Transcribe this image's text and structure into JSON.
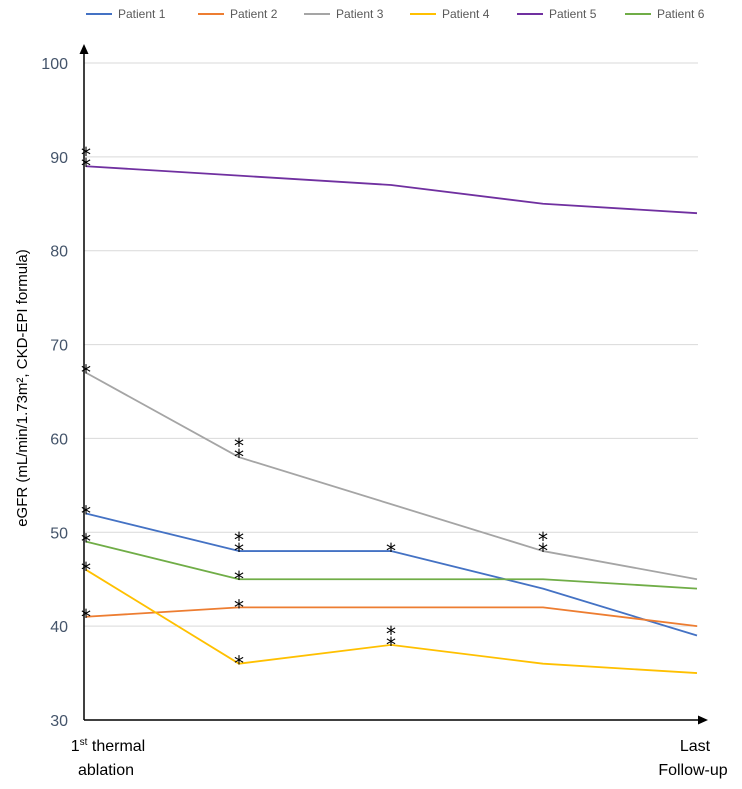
{
  "chart_data": {
    "type": "line",
    "ylabel": "eGFR (mL/min/1.73m², CKD-EPI formula)",
    "ylim": [
      30,
      100
    ],
    "yticks": [
      "30",
      "40",
      "50",
      "60",
      "70",
      "80",
      "90",
      "100"
    ],
    "ytick_values": [
      30,
      40,
      50,
      60,
      70,
      80,
      90,
      100
    ],
    "grid": true,
    "legend_position": "top",
    "x_points": 5,
    "x_labels": {
      "first_sup": "st",
      "first_line1_rest": " thermal",
      "first_num": "1",
      "first_line2": "ablation",
      "last_line1": "Last",
      "last_line2": "Follow-up"
    },
    "series": [
      {
        "name": "Patient 1",
        "color": "#4472c4",
        "values": [
          52,
          48,
          48,
          44,
          39
        ],
        "stars": [
          1,
          2,
          1,
          0,
          0
        ]
      },
      {
        "name": "Patient 2",
        "color": "#ed7d31",
        "values": [
          41,
          42,
          42,
          42,
          40
        ],
        "stars": [
          1,
          1,
          0,
          0,
          0
        ]
      },
      {
        "name": "Patient 3",
        "color": "#a5a5a5",
        "values": [
          67,
          58,
          53,
          48,
          45
        ],
        "stars": [
          1,
          2,
          0,
          2,
          0
        ]
      },
      {
        "name": "Patient 4",
        "color": "#ffc000",
        "values": [
          46,
          36,
          38,
          36,
          35
        ],
        "stars": [
          1,
          1,
          2,
          0,
          0
        ]
      },
      {
        "name": "Patient 5",
        "color": "#7030a0",
        "values": [
          89,
          88,
          87,
          85,
          84
        ],
        "stars": [
          2,
          0,
          0,
          0,
          0
        ]
      },
      {
        "name": "Patient 6",
        "color": "#70ad47",
        "values": [
          49,
          45,
          45,
          45,
          44
        ],
        "stars": [
          1,
          1,
          0,
          0,
          0
        ]
      }
    ],
    "star_symbol": "*"
  }
}
